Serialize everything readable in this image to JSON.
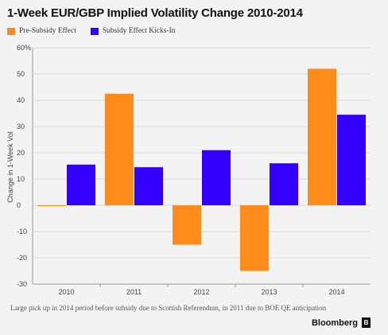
{
  "header": {
    "title": "1-Week EUR/GBP Implied Volatility Change 2010-2014"
  },
  "footer": {
    "note": "Large pick up in 2014 period before subsidy due to Scottish Referendum, in 2011 due to BOE QE anticipation",
    "brand": "Bloomberg",
    "brand_icon": "bloomberg-logo-icon"
  },
  "colors": {
    "pre_subsidy": "#ff8c1a",
    "subsidy_kicks_in": "#3300ff",
    "background": "#f3f3f3",
    "grid": "#d9d9d9"
  },
  "chart_data": {
    "type": "bar",
    "title": "1-Week EUR/GBP Implied Volatility Change 2010-2014",
    "xlabel": "",
    "ylabel": "Change in 1-Week Vol",
    "categories": [
      "2010",
      "2011",
      "2012",
      "2013",
      "2014"
    ],
    "series": [
      {
        "name": "Pre-Subsidy Effect",
        "values": [
          0,
          42.5,
          -15,
          -25,
          52
        ]
      },
      {
        "name": "Subsidy Effect Kicks-In",
        "values": [
          15.5,
          14.5,
          21,
          16,
          34.5
        ]
      }
    ],
    "ylim": [
      -30,
      60
    ],
    "yticks": [
      -30,
      -20,
      -10,
      0,
      10,
      20,
      30,
      40,
      50,
      60
    ],
    "ytick_labels": [
      "-30",
      "-20",
      "-10",
      "0",
      "10",
      "20",
      "30",
      "40",
      "50",
      "60%"
    ],
    "grid": true,
    "legend_position": "top-left"
  }
}
